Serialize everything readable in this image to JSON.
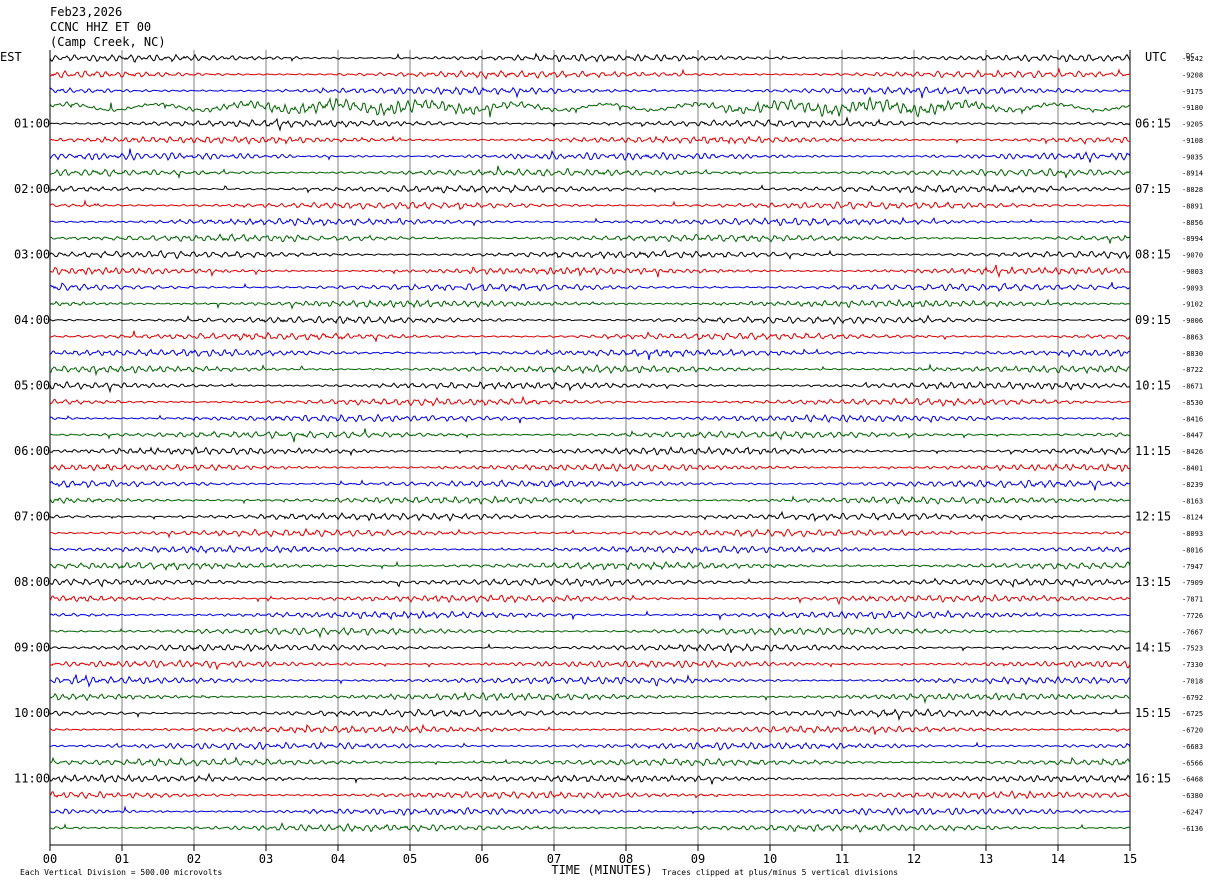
{
  "header": {
    "date": "Feb23,2026",
    "station": "CCNC HHZ ET 00",
    "location": "(Camp Creek, NC)"
  },
  "chart_data": {
    "type": "line",
    "title": "",
    "xlabel": "TIME (MINUTES)",
    "left_axis_label": "EST",
    "right_axis_label": "UTC",
    "dc_label": "DC",
    "x_ticks": [
      "00",
      "01",
      "02",
      "03",
      "04",
      "05",
      "06",
      "07",
      "08",
      "09",
      "10",
      "11",
      "12",
      "13",
      "14",
      "15"
    ],
    "xlim": [
      0,
      15
    ],
    "trace_colors": [
      "#000000",
      "#e00000",
      "#0000e0",
      "#006400"
    ],
    "est_hour_labels": [
      "01:00",
      "02:00",
      "03:00",
      "04:00",
      "05:00",
      "06:00",
      "07:00",
      "08:00",
      "09:00",
      "10:00",
      "11:00"
    ],
    "utc_hour_labels": [
      "06:15",
      "07:15",
      "08:15",
      "09:15",
      "10:15",
      "11:15",
      "12:15",
      "13:15",
      "14:15",
      "15:15",
      "16:15"
    ],
    "dc_offsets": [
      "-9242",
      "-9208",
      "-9175",
      "-9180",
      "-9205",
      "-9108",
      "-9035",
      "-8914",
      "-8828",
      "-8891",
      "-8856",
      "-8994",
      "-9070",
      "-9003",
      "-9093",
      "-9102",
      "-9006",
      "-8863",
      "-8830",
      "-8722",
      "-8671",
      "-8530",
      "-8416",
      "-8447",
      "-8426",
      "-8401",
      "-8239",
      "-8163",
      "-8124",
      "-8093",
      "-8016",
      "-7947",
      "-7909",
      "-7871",
      "-7726",
      "-7667",
      "-7523",
      "-7330",
      "-7018",
      "-6792",
      "-6725",
      "-6720",
      "-6683",
      "-6566",
      "-6468",
      "-6380",
      "-6247",
      "-6136"
    ],
    "footer_left": "Each Vertical Division =  500.00 microvolts",
    "footer_right": "Traces clipped at plus/minus 5 vertical divisions",
    "grid": true
  }
}
